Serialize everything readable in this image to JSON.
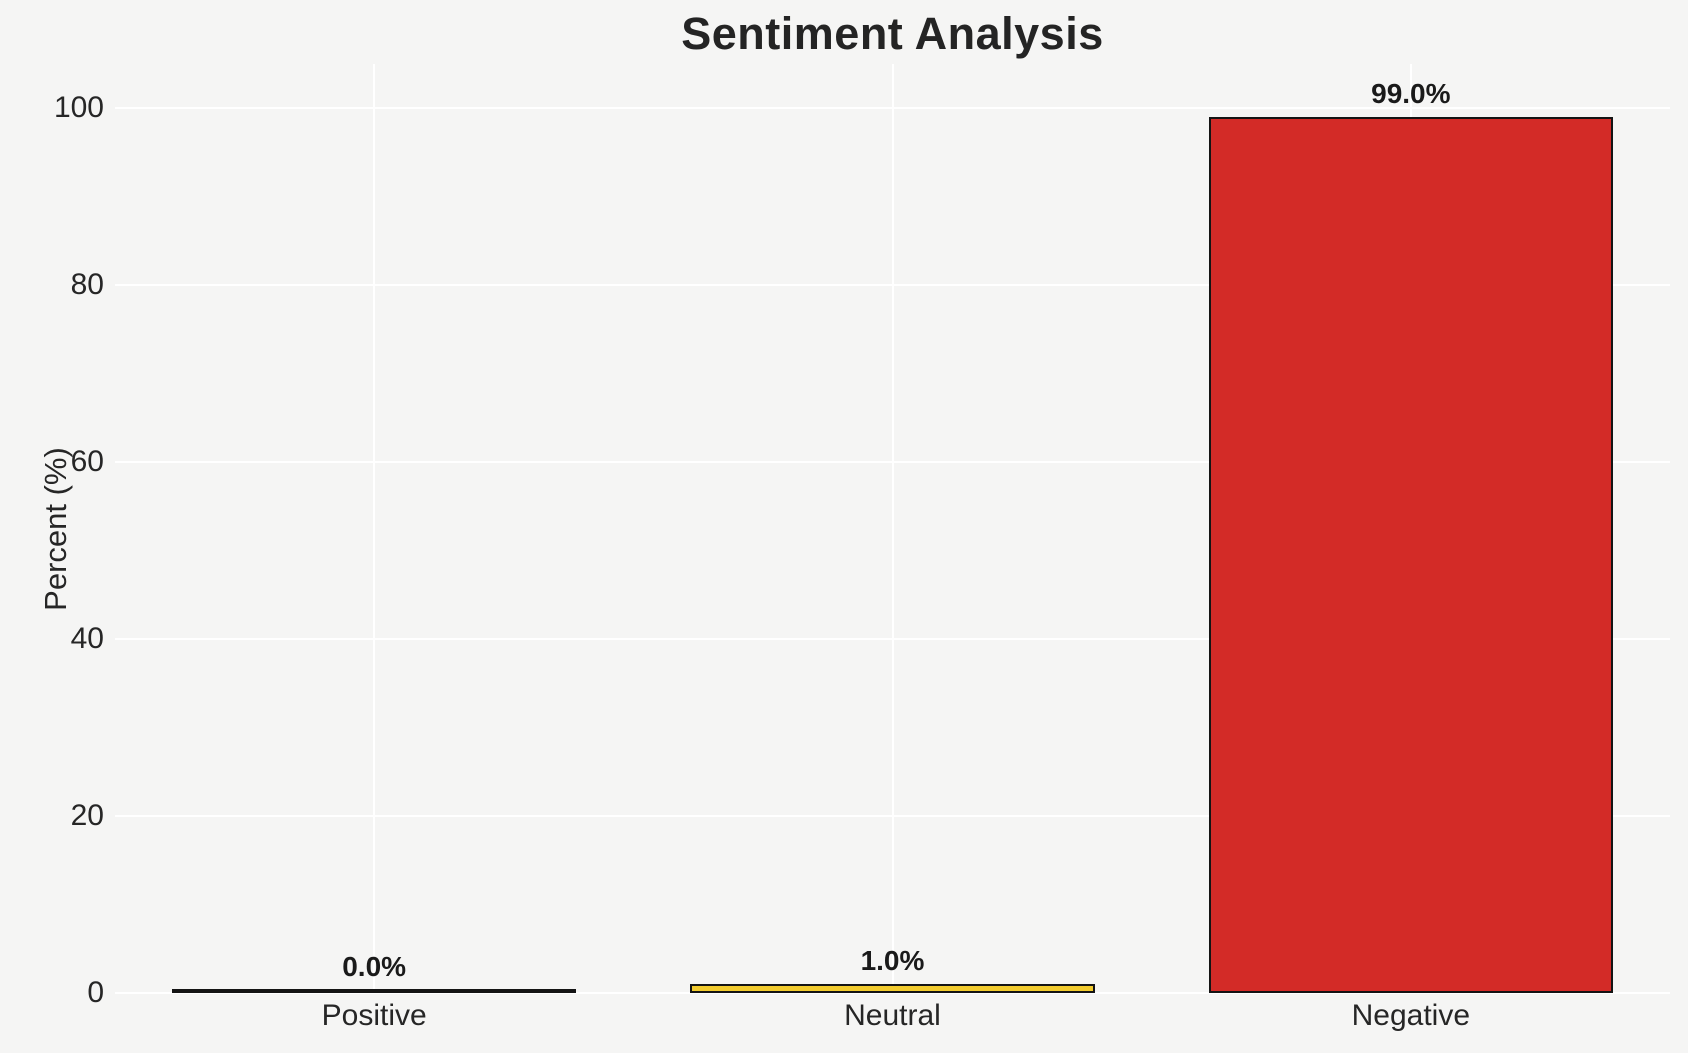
{
  "chart_data": {
    "type": "bar",
    "title": "Sentiment Analysis",
    "xlabel": "",
    "ylabel": "Percent (%)",
    "categories": [
      "Positive",
      "Neutral",
      "Negative"
    ],
    "values": [
      0.0,
      1.0,
      99.0
    ],
    "value_labels": [
      "0.0%",
      "1.0%",
      "99.0%"
    ],
    "bar_colors": [
      "none",
      "#f2cb2e",
      "#d32b27"
    ],
    "bar_edge_color": "#141414",
    "ylim": [
      0,
      105
    ],
    "yticks": [
      0,
      20,
      40,
      60,
      80,
      100
    ],
    "grid": true,
    "grid_color": "#ffffff",
    "background_color": "#f5f5f4",
    "text_color": "#262626",
    "legend": "none"
  }
}
